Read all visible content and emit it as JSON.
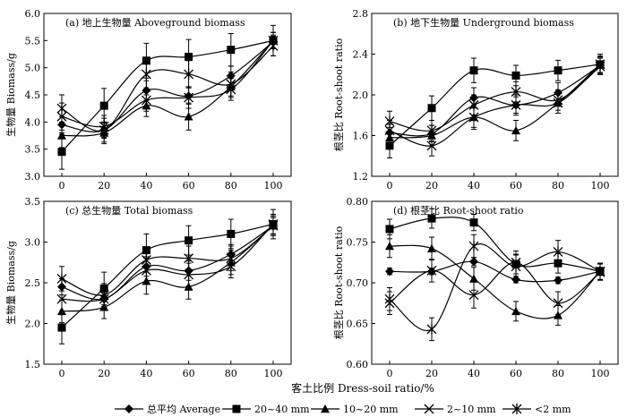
{
  "figure": {
    "x_axis_label": "客土比例 Dress-soil ratio/%"
  },
  "legend": [
    {
      "name": "总平均 Average",
      "marker": "diamond"
    },
    {
      "name": "20~40 mm",
      "marker": "square"
    },
    {
      "name": "10~20 mm",
      "marker": "triangle"
    },
    {
      "name": "2~10 mm",
      "marker": "x"
    },
    {
      "name": "<2 mm",
      "marker": "star"
    }
  ],
  "chart_data": [
    {
      "type": "line",
      "title": "(a) 地上生物量 Aboveground biomass",
      "ylabel": "生物量 Biomass/g",
      "xlabel": "",
      "x": [
        0,
        20,
        40,
        60,
        80,
        100
      ],
      "x_tick_labels": [
        "0",
        "20",
        "40",
        "60",
        "80",
        "100"
      ],
      "ylim": [
        3.0,
        6.0
      ],
      "y_ticks": [
        "3.0",
        "3.5",
        "4.0",
        "4.5",
        "5.0",
        "5.5",
        "6.0"
      ],
      "series": [
        {
          "name": "总平均 Average",
          "values": [
            3.95,
            3.85,
            4.58,
            4.48,
            4.85,
            5.48
          ],
          "err": [
            0.15,
            0.15,
            0.18,
            0.15,
            0.18,
            0.12
          ]
        },
        {
          "name": "20~40 mm",
          "values": [
            3.45,
            4.3,
            5.13,
            5.2,
            5.33,
            5.5
          ],
          "err": [
            0.32,
            0.32,
            0.32,
            0.32,
            0.3,
            0.28
          ]
        },
        {
          "name": "10~20 mm",
          "values": [
            3.75,
            3.8,
            4.3,
            4.1,
            4.65,
            5.5
          ],
          "err": [
            0.22,
            0.2,
            0.2,
            0.25,
            0.2,
            0.15
          ]
        },
        {
          "name": "2~10 mm",
          "values": [
            4.1,
            3.92,
            4.4,
            4.45,
            4.6,
            5.5
          ],
          "err": [
            0.25,
            0.2,
            0.2,
            0.2,
            0.2,
            0.15
          ]
        },
        {
          "name": "<2 mm",
          "values": [
            4.25,
            3.85,
            4.88,
            4.88,
            4.7,
            5.4
          ],
          "err": [
            0.25,
            0.22,
            0.25,
            0.25,
            0.22,
            0.18
          ]
        }
      ]
    },
    {
      "type": "line",
      "title": "(b) 地下生物量 Underground biomass",
      "ylabel": "根茎比 Root-shoot ratio",
      "xlabel": "",
      "x": [
        0,
        20,
        40,
        60,
        80,
        100
      ],
      "x_tick_labels": [
        "0",
        "20",
        "40",
        "60",
        "80",
        "100"
      ],
      "ylim": [
        1.2,
        2.8
      ],
      "y_ticks": [
        "1.2",
        "1.6",
        "2.0",
        "2.4",
        "2.8"
      ],
      "series": [
        {
          "name": "总平均 Average",
          "values": [
            1.63,
            1.62,
            1.97,
            1.9,
            2.02,
            2.29
          ],
          "err": [
            0.08,
            0.08,
            0.1,
            0.08,
            0.1,
            0.08
          ]
        },
        {
          "name": "20~40 mm",
          "values": [
            1.5,
            1.87,
            2.24,
            2.19,
            2.24,
            2.3
          ],
          "err": [
            0.12,
            0.12,
            0.12,
            0.1,
            0.1,
            0.1
          ]
        },
        {
          "name": "10~20 mm",
          "values": [
            1.58,
            1.6,
            1.78,
            1.65,
            1.92,
            2.3
          ],
          "err": [
            0.1,
            0.1,
            0.12,
            0.1,
            0.1,
            0.08
          ]
        },
        {
          "name": "2~10 mm",
          "values": [
            1.65,
            1.5,
            1.78,
            1.9,
            1.92,
            2.3
          ],
          "err": [
            0.1,
            0.1,
            0.1,
            0.1,
            0.1,
            0.08
          ]
        },
        {
          "name": "<2 mm",
          "values": [
            1.74,
            1.65,
            1.9,
            2.03,
            1.95,
            2.28
          ],
          "err": [
            0.1,
            0.1,
            0.1,
            0.1,
            0.1,
            0.08
          ]
        }
      ]
    },
    {
      "type": "line",
      "title": "(c) 总生物量 Total biomass",
      "ylabel": "生物量 Biomass/g",
      "xlabel": "",
      "x": [
        0,
        20,
        40,
        60,
        80,
        100
      ],
      "x_tick_labels": [
        "0",
        "20",
        "40",
        "60",
        "80",
        "100"
      ],
      "ylim": [
        1.5,
        3.5
      ],
      "y_ticks": [
        "1.5",
        "2.0",
        "2.5",
        "3.0",
        "3.5"
      ],
      "series": [
        {
          "name": "总平均 Average",
          "values": [
            2.45,
            2.3,
            2.7,
            2.65,
            2.85,
            3.2
          ],
          "err": [
            0.1,
            0.1,
            0.12,
            0.12,
            0.12,
            0.1
          ]
        },
        {
          "name": "20~40 mm",
          "values": [
            1.95,
            2.43,
            2.9,
            3.02,
            3.1,
            3.22
          ],
          "err": [
            0.2,
            0.2,
            0.2,
            0.18,
            0.18,
            0.18
          ]
        },
        {
          "name": "10~20 mm",
          "values": [
            2.15,
            2.2,
            2.52,
            2.45,
            2.75,
            3.2
          ],
          "err": [
            0.14,
            0.14,
            0.16,
            0.15,
            0.15,
            0.12
          ]
        },
        {
          "name": "2~10 mm",
          "values": [
            2.3,
            2.3,
            2.65,
            2.6,
            2.7,
            3.22
          ],
          "err": [
            0.15,
            0.14,
            0.15,
            0.14,
            0.14,
            0.12
          ]
        },
        {
          "name": "<2 mm",
          "values": [
            2.55,
            2.35,
            2.78,
            2.8,
            2.8,
            3.2
          ],
          "err": [
            0.15,
            0.14,
            0.15,
            0.15,
            0.15,
            0.12
          ]
        }
      ]
    },
    {
      "type": "line",
      "title": "(d) 根茎比 Root-shoot ratio",
      "ylabel": "根茎比 Root-shoot ratio",
      "xlabel": "",
      "x": [
        0,
        20,
        40,
        60,
        80,
        100
      ],
      "x_tick_labels": [
        "0",
        "20",
        "40",
        "60",
        "80",
        "100"
      ],
      "ylim": [
        0.6,
        0.8
      ],
      "y_ticks": [
        "0.60",
        "0.65",
        "0.70",
        "0.75",
        "0.80"
      ],
      "series": [
        {
          "name": "总平均 Average",
          "values": [
            0.714,
            0.714,
            0.726,
            0.704,
            0.703,
            0.714
          ],
          "err": [
            0.004,
            0.004,
            0.005,
            0.004,
            0.004,
            0.005
          ]
        },
        {
          "name": "20~40 mm",
          "values": [
            0.766,
            0.779,
            0.774,
            0.723,
            0.724,
            0.714
          ],
          "err": [
            0.012,
            0.012,
            0.01,
            0.012,
            0.012,
            0.01
          ]
        },
        {
          "name": "10~20 mm",
          "values": [
            0.745,
            0.742,
            0.705,
            0.665,
            0.66,
            0.714
          ],
          "err": [
            0.014,
            0.014,
            0.014,
            0.012,
            0.012,
            0.01
          ]
        },
        {
          "name": "2~10 mm",
          "values": [
            0.675,
            0.715,
            0.685,
            0.725,
            0.675,
            0.713
          ],
          "err": [
            0.014,
            0.014,
            0.016,
            0.014,
            0.014,
            0.01
          ]
        },
        {
          "name": "<2 mm",
          "values": [
            0.68,
            0.643,
            0.745,
            0.72,
            0.738,
            0.714
          ],
          "err": [
            0.014,
            0.014,
            0.014,
            0.014,
            0.014,
            0.01
          ]
        }
      ]
    }
  ]
}
